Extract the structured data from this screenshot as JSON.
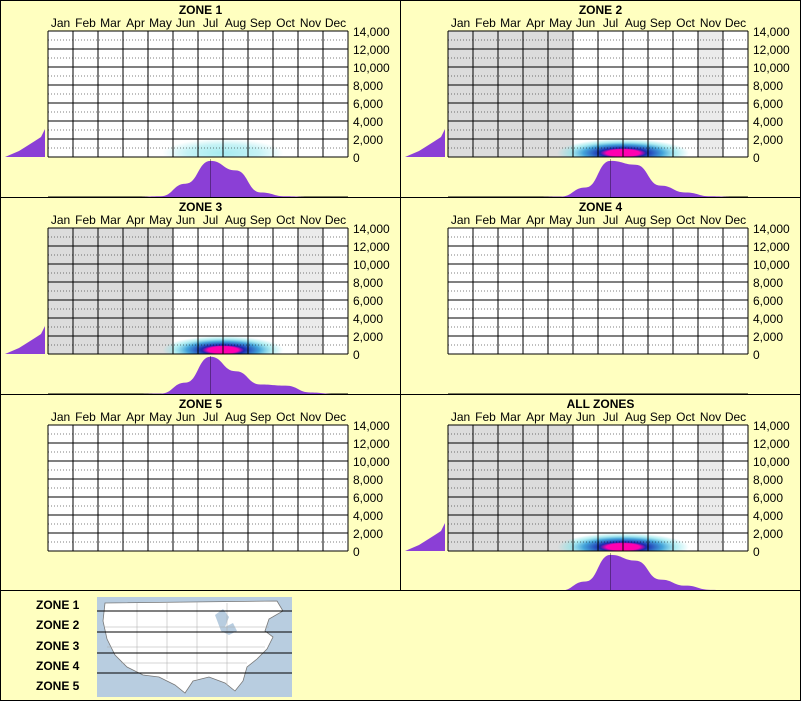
{
  "months": [
    "Jan",
    "Feb",
    "Mar",
    "Apr",
    "May",
    "Jun",
    "Jul",
    "Aug",
    "Sep",
    "Oct",
    "Nov",
    "Dec"
  ],
  "y_ticks": [
    "14,000",
    "12,000",
    "10,000",
    "8,000",
    "6,000",
    "4,000",
    "2,000",
    "0"
  ],
  "colors": {
    "background": "#ffffc0",
    "inactive_month": "#dcdcdc",
    "partial_month": "#ebebeb",
    "density": "#8b3fd6",
    "heat_low": "#7fe3ea",
    "heat_mid": "#1a2ab0",
    "heat_high": "#ff00b0"
  },
  "chart_data": [
    {
      "title": "ZONE 1",
      "type": "heatmap",
      "ylim": [
        0,
        14000
      ],
      "month_shading": [
        "none",
        "none",
        "none",
        "none",
        "none",
        "none",
        "none",
        "none",
        "none",
        "none",
        "none",
        "none"
      ],
      "heat": {
        "center_month": 7.0,
        "spread": 1.1,
        "strength": 0.35
      },
      "month_density": [
        0,
        0,
        0,
        0,
        0.02,
        0.35,
        0.95,
        0.7,
        0.12,
        0.02,
        0,
        0
      ],
      "elevation_density_visible": true
    },
    {
      "title": "ZONE 2",
      "type": "heatmap",
      "ylim": [
        0,
        14000
      ],
      "month_shading": [
        "inactive",
        "inactive",
        "inactive",
        "inactive",
        "inactive",
        "none",
        "none",
        "none",
        "none",
        "none",
        "partial",
        "none"
      ],
      "heat": {
        "center_month": 7.0,
        "spread": 1.2,
        "strength": 1.0
      },
      "month_density": [
        0,
        0,
        0,
        0,
        0.01,
        0.25,
        0.95,
        0.85,
        0.3,
        0.12,
        0.02,
        0
      ],
      "elevation_density_visible": true
    },
    {
      "title": "ZONE 3",
      "type": "heatmap",
      "ylim": [
        0,
        14000
      ],
      "month_shading": [
        "inactive",
        "inactive",
        "inactive",
        "inactive",
        "inactive",
        "none",
        "none",
        "none",
        "none",
        "none",
        "partial",
        "none"
      ],
      "heat": {
        "center_month": 7.0,
        "spread": 1.1,
        "strength": 1.0
      },
      "month_density": [
        0,
        0,
        0,
        0,
        0.01,
        0.3,
        0.98,
        0.6,
        0.25,
        0.22,
        0.04,
        0
      ],
      "elevation_density_visible": true
    },
    {
      "title": "ZONE 4",
      "type": "heatmap",
      "ylim": [
        0,
        14000
      ],
      "month_shading": [
        "none",
        "none",
        "none",
        "none",
        "none",
        "none",
        "none",
        "none",
        "none",
        "none",
        "none",
        "none"
      ],
      "heat": null,
      "month_density": [],
      "elevation_density_visible": false
    },
    {
      "title": "ZONE 5",
      "type": "heatmap",
      "ylim": [
        0,
        14000
      ],
      "month_shading": [
        "none",
        "none",
        "none",
        "none",
        "none",
        "none",
        "none",
        "none",
        "none",
        "none",
        "none",
        "none"
      ],
      "heat": null,
      "month_density": [],
      "elevation_density_visible": false
    },
    {
      "title": "ALL ZONES",
      "type": "heatmap",
      "ylim": [
        0,
        14000
      ],
      "month_shading": [
        "inactive",
        "inactive",
        "inactive",
        "inactive",
        "inactive",
        "none",
        "none",
        "none",
        "none",
        "none",
        "partial",
        "none"
      ],
      "heat": {
        "center_month": 7.0,
        "spread": 1.2,
        "strength": 1.0
      },
      "month_density": [
        0,
        0,
        0,
        0,
        0.01,
        0.25,
        0.95,
        0.8,
        0.3,
        0.14,
        0.03,
        0
      ],
      "elevation_density_visible": true
    }
  ],
  "legend": {
    "zones": [
      "ZONE 1",
      "ZONE 2",
      "ZONE 3",
      "ZONE 4",
      "ZONE 5"
    ],
    "map_icon": "us-map-icon"
  }
}
